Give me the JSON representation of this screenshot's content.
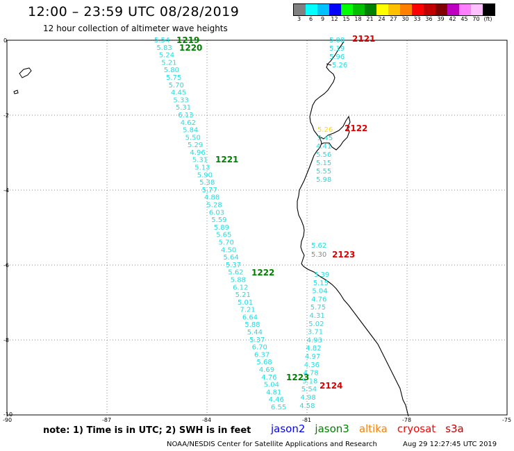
{
  "header": {
    "title": "12:00 – 23:59 UTC 08/28/2019",
    "subtitle": "12 hour collection of altimeter wave heights"
  },
  "legend": {
    "colors": [
      "#808080",
      "#00ffff",
      "#00c0ff",
      "#0000ff",
      "#00ff00",
      "#00c000",
      "#008000",
      "#ffff00",
      "#ffc000",
      "#ff8000",
      "#ff0000",
      "#c00000",
      "#800000",
      "#c000c0",
      "#ff80ff",
      "#ffc0ff",
      "#000000"
    ],
    "labels": [
      "3",
      "6",
      "9",
      "12",
      "15",
      "18",
      "21",
      "24",
      "27",
      "30",
      "33",
      "36",
      "39",
      "42",
      "45",
      "70",
      "(ft)"
    ]
  },
  "axes": {
    "lat_labels": [
      "0",
      "-2",
      "-4",
      "-6",
      "-8",
      "-10"
    ],
    "lon_labels": [
      "-90",
      "-87",
      "-84",
      "-81",
      "-78",
      "-75"
    ]
  },
  "tracks": [
    {
      "id": "1219",
      "color": "#008000",
      "label_color": "#008000"
    },
    {
      "id": "1220",
      "color": "#008000",
      "label_color": "#008000"
    },
    {
      "id": "1221",
      "color": "#008000",
      "label_color": "#008000"
    },
    {
      "id": "1222",
      "color": "#008000",
      "label_color": "#008000"
    },
    {
      "id": "1223",
      "color": "#008000",
      "label_color": "#008000"
    },
    {
      "id": "2121",
      "color": "#ff0000",
      "label_color": "#dd0000"
    },
    {
      "id": "2122",
      "color": "#ff0000",
      "label_color": "#dd0000"
    },
    {
      "id": "2123",
      "color": "#ff0000",
      "label_color": "#dd0000"
    },
    {
      "id": "2124",
      "color": "#ff0000",
      "label_color": "#dd0000"
    }
  ],
  "values": {
    "left_track": [
      "5.54",
      "5.83",
      "5.24",
      "5.21",
      "5.80",
      "5.75",
      "5.70",
      "4.45",
      "5.33",
      "5.31",
      "6.13",
      "4.62",
      "5.84",
      "5.50",
      "5.29",
      "4.96",
      "5.31",
      "5.13",
      "5.90",
      "5.38",
      "5.77",
      "4.88",
      "5.28",
      "6.03",
      "5.59",
      "5.89",
      "5.65",
      "5.70",
      "4.50",
      "5.64",
      "5.37",
      "5.62",
      "5.88",
      "6.12",
      "5.21",
      "5.01",
      "7.21",
      "6.64",
      "5.88",
      "5.44",
      "5.37",
      "6.70",
      "6.37",
      "5.68",
      "4.69",
      "4.76",
      "5.04",
      "4.81",
      "4.46",
      "6.55"
    ],
    "coast_2121": [
      "5.08",
      "5.19",
      "5.96",
      "5.26"
    ],
    "coast_2122": [
      "5.26",
      "5.45",
      "4.41",
      "5.56",
      "5.15",
      "5.55",
      "5.98"
    ],
    "coast_2123": [
      "5.62",
      "5.30"
    ],
    "right_track": [
      "5.39",
      "5.15",
      "5.04",
      "4.76",
      "5.75",
      "4.31",
      "5.02",
      "3.71",
      "4.93",
      "4.82",
      "4.97",
      "4.36",
      "4.78",
      "5.18",
      "5.54",
      "4.98",
      "4.58"
    ]
  },
  "footer": {
    "note": "note: 1) Time is in UTC; 2) SWH is in feet",
    "satellites": [
      {
        "name": "jason2",
        "color": "#0000ff"
      },
      {
        "name": "jason3",
        "color": "#008000"
      },
      {
        "name": "altika",
        "color": "#ff8000"
      },
      {
        "name": "cryosat",
        "color": "#ff0000"
      },
      {
        "name": "s3a",
        "color": "#c00000"
      }
    ],
    "credit": "NOAA/NESDIS Center for Satellite Applications and Research",
    "timestamp": "Aug 29 12:27:45 UTC 2019"
  }
}
